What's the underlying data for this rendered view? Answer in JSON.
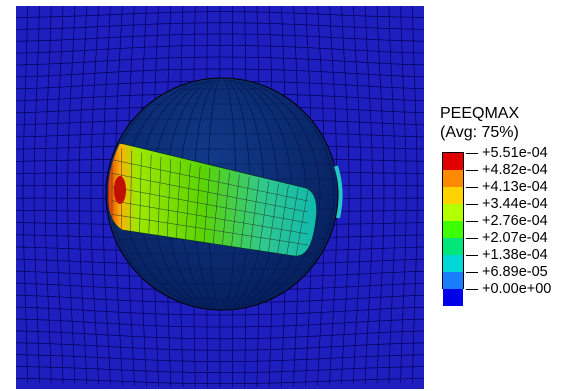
{
  "legend": {
    "title": "PEEQMAX",
    "subtitle": "(Avg: 75%)",
    "labels": [
      "+5.51e-04",
      "+4.82e-04",
      "+4.13e-04",
      "+3.44e-04",
      "+2.76e-04",
      "+2.07e-04",
      "+1.38e-04",
      "+6.89e-05",
      "+0.00e+00"
    ],
    "colors": [
      "#e00000",
      "#ff8a00",
      "#ffd200",
      "#b4ff00",
      "#3cff00",
      "#00e67a",
      "#00d8d8",
      "#1a7cff",
      "#0000e8"
    ]
  },
  "model": {
    "background_color": "#1f1fbf",
    "hole_color": "#0a2a6e",
    "mesh_color": "#000050"
  }
}
